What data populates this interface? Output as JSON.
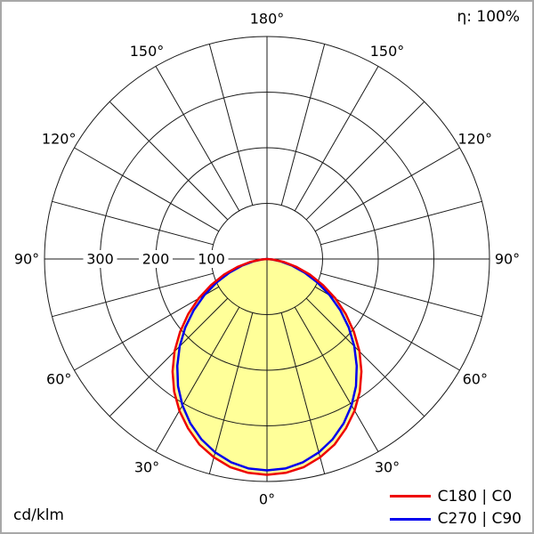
{
  "header": {
    "efficiency": "η: 100%"
  },
  "footer": {
    "unit": "cd/klm"
  },
  "legend": {
    "items": [
      {
        "label": "C180 | C0",
        "color": "#ee0000"
      },
      {
        "label": "C270 | C90",
        "color": "#0000ee"
      }
    ]
  },
  "chart_data": {
    "type": "polar",
    "description": "Luminous intensity distribution polar curve",
    "unit": "cd/klm",
    "efficiency": "η: 100%",
    "angle_label_step_deg": 30,
    "grid_step_deg": 15,
    "angle_labels": [
      "0°",
      "30°",
      "60°",
      "90°",
      "120°",
      "150°",
      "180°"
    ],
    "radial_ticks": [
      100,
      200,
      300
    ],
    "radial_tick_labels": [
      "100",
      "200",
      "300"
    ],
    "radial_max": 400,
    "grid_color": "#1a1a1a",
    "fill_color": "#ffff99",
    "gamma_deg": [
      0,
      5,
      10,
      15,
      20,
      25,
      30,
      35,
      40,
      45,
      50,
      55,
      60,
      65,
      70,
      75,
      80,
      85,
      90
    ],
    "series": [
      {
        "name": "C180 | C0",
        "color": "#ee0000",
        "values": [
          388,
          386,
          380,
          369,
          355,
          336,
          315,
          291,
          264,
          235,
          204,
          173,
          142,
          111,
          82,
          55,
          31,
          11,
          0
        ]
      },
      {
        "name": "C270 | C90",
        "color": "#0000ee",
        "values": [
          380,
          378,
          371,
          360,
          345,
          326,
          304,
          279,
          251,
          222,
          192,
          161,
          130,
          100,
          72,
          47,
          25,
          9,
          0
        ]
      }
    ]
  }
}
